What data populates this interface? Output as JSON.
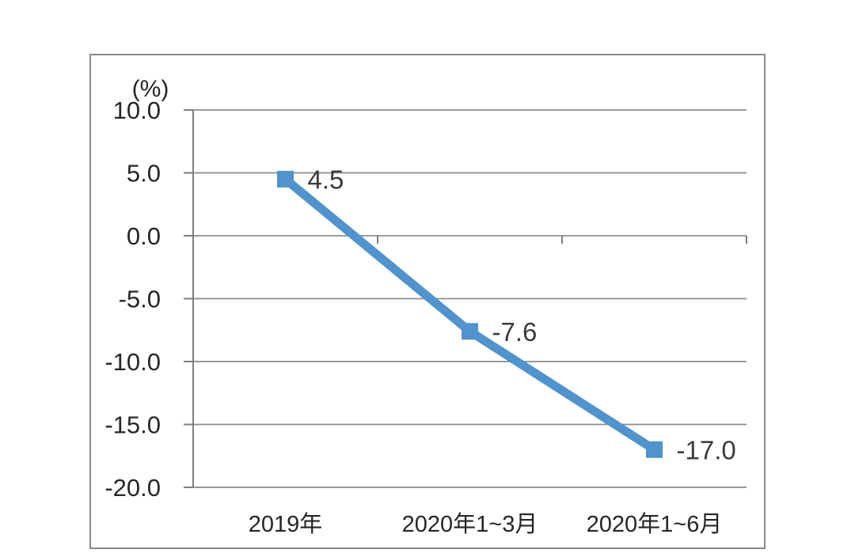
{
  "chart_data": {
    "type": "line",
    "title": "",
    "ylabel": "(%)",
    "xlabel": "",
    "categories": [
      "2019年",
      "2020年1~3月",
      "2020年1~6月"
    ],
    "series": [
      {
        "name": "series-1",
        "values": [
          4.5,
          -7.6,
          -17.0
        ]
      }
    ],
    "data_labels": [
      "4.5",
      "-7.6",
      "-17.0"
    ],
    "yticks": [
      10.0,
      5.0,
      0.0,
      -5.0,
      -10.0,
      -15.0,
      -20.0
    ],
    "ytick_labels": [
      "10.0",
      "5.0",
      "0.0",
      "-5.0",
      "-10.0",
      "-15.0",
      "-20.0"
    ],
    "ylim": [
      -20,
      10
    ],
    "grid": true,
    "legend_position": "none",
    "marker": "square",
    "colors": {
      "line": "#5093cd",
      "marker": "#5093cd",
      "gridline": "#8b8b8b",
      "axis": "#7f7f7f",
      "panel_border": "#8a8a8a",
      "tick_label": "#262626",
      "data_label": "#3b3b3b",
      "background": "#ffffff"
    }
  }
}
